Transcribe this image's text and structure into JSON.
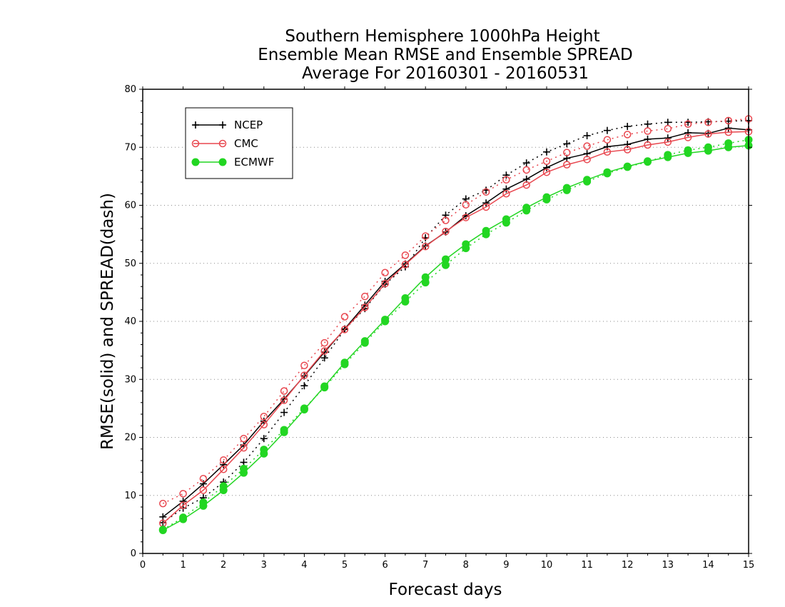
{
  "chart_data": {
    "type": "line",
    "title_lines": [
      "Southern Hemisphere 1000hPa Height",
      "Ensemble Mean RMSE and Ensemble SPREAD",
      "Average For 20160301 - 20160531"
    ],
    "xlabel": "Forecast days",
    "ylabel": "RMSE(solid) and SPREAD(dash)",
    "xlim": [
      0,
      15
    ],
    "ylim": [
      0,
      80
    ],
    "x_ticks": [
      "0",
      "1",
      "2",
      "3",
      "4",
      "5",
      "6",
      "7",
      "8",
      "9",
      "10",
      "11",
      "12",
      "13",
      "14",
      "15"
    ],
    "y_ticks": [
      "0",
      "10",
      "20",
      "30",
      "40",
      "50",
      "60",
      "70",
      "80"
    ],
    "grid": "horizontal dotted",
    "legend_position": "top-left",
    "x": [
      0.5,
      1,
      1.5,
      2,
      2.5,
      3,
      3.5,
      4,
      4.5,
      5,
      5.5,
      6,
      6.5,
      7,
      7.5,
      8,
      8.5,
      9,
      9.5,
      10,
      10.5,
      11,
      11.5,
      12,
      12.5,
      13,
      13.5,
      14,
      14.5,
      15
    ],
    "series": [
      {
        "name": "NCEP",
        "color": "#000000",
        "marker": "plus",
        "rmse": [
          6.3,
          9.0,
          12.0,
          15.3,
          18.7,
          22.8,
          26.6,
          30.6,
          34.7,
          38.7,
          42.8,
          46.9,
          49.9,
          53.0,
          55.4,
          58.2,
          60.4,
          62.8,
          64.5,
          66.5,
          68.1,
          68.9,
          70.1,
          70.5,
          71.4,
          71.6,
          72.5,
          72.4,
          73.3,
          73.0
        ],
        "spread": [
          5.3,
          7.8,
          9.6,
          12.3,
          15.7,
          19.8,
          24.3,
          28.9,
          33.7,
          38.6,
          42.2,
          46.4,
          49.4,
          54.4,
          58.3,
          61.1,
          62.6,
          65.2,
          67.3,
          69.2,
          70.6,
          72.0,
          72.9,
          73.6,
          74.0,
          74.3,
          74.3,
          74.4,
          74.5,
          74.6
        ]
      },
      {
        "name": "CMC",
        "color": "#e8474f",
        "marker": "circle",
        "rmse": [
          5.2,
          8.3,
          10.9,
          14.5,
          18.2,
          22.2,
          26.4,
          30.7,
          34.9,
          38.6,
          42.4,
          46.5,
          49.8,
          52.9,
          55.5,
          57.9,
          59.7,
          62.0,
          63.5,
          65.7,
          67.0,
          67.9,
          69.2,
          69.6,
          70.4,
          70.9,
          71.7,
          72.3,
          72.6,
          72.7
        ],
        "spread": [
          8.6,
          10.3,
          12.9,
          16.1,
          19.8,
          23.6,
          28.0,
          32.4,
          36.3,
          40.8,
          44.3,
          48.4,
          51.4,
          54.7,
          57.4,
          60.1,
          62.3,
          64.4,
          66.1,
          67.6,
          69.1,
          70.2,
          71.3,
          72.2,
          72.8,
          73.2,
          74.0,
          74.3,
          74.6,
          74.9
        ]
      },
      {
        "name": "ECMWF",
        "color": "#22d622",
        "marker": "filled-circle",
        "rmse": [
          4.0,
          5.9,
          8.2,
          10.9,
          13.9,
          17.2,
          20.9,
          24.8,
          28.8,
          32.9,
          36.6,
          40.3,
          44.0,
          47.6,
          50.7,
          53.3,
          55.6,
          57.6,
          59.6,
          61.4,
          63.0,
          64.4,
          65.7,
          66.7,
          67.6,
          68.3,
          69.0,
          69.4,
          70.0,
          70.3
        ],
        "spread": [
          4.1,
          6.2,
          8.8,
          11.6,
          14.6,
          17.9,
          21.3,
          25.0,
          28.6,
          32.6,
          36.3,
          40.0,
          43.4,
          46.7,
          49.7,
          52.6,
          55.0,
          57.0,
          59.1,
          61.0,
          62.6,
          64.1,
          65.5,
          66.6,
          67.5,
          68.7,
          69.5,
          70.0,
          70.7,
          71.3
        ]
      }
    ]
  }
}
